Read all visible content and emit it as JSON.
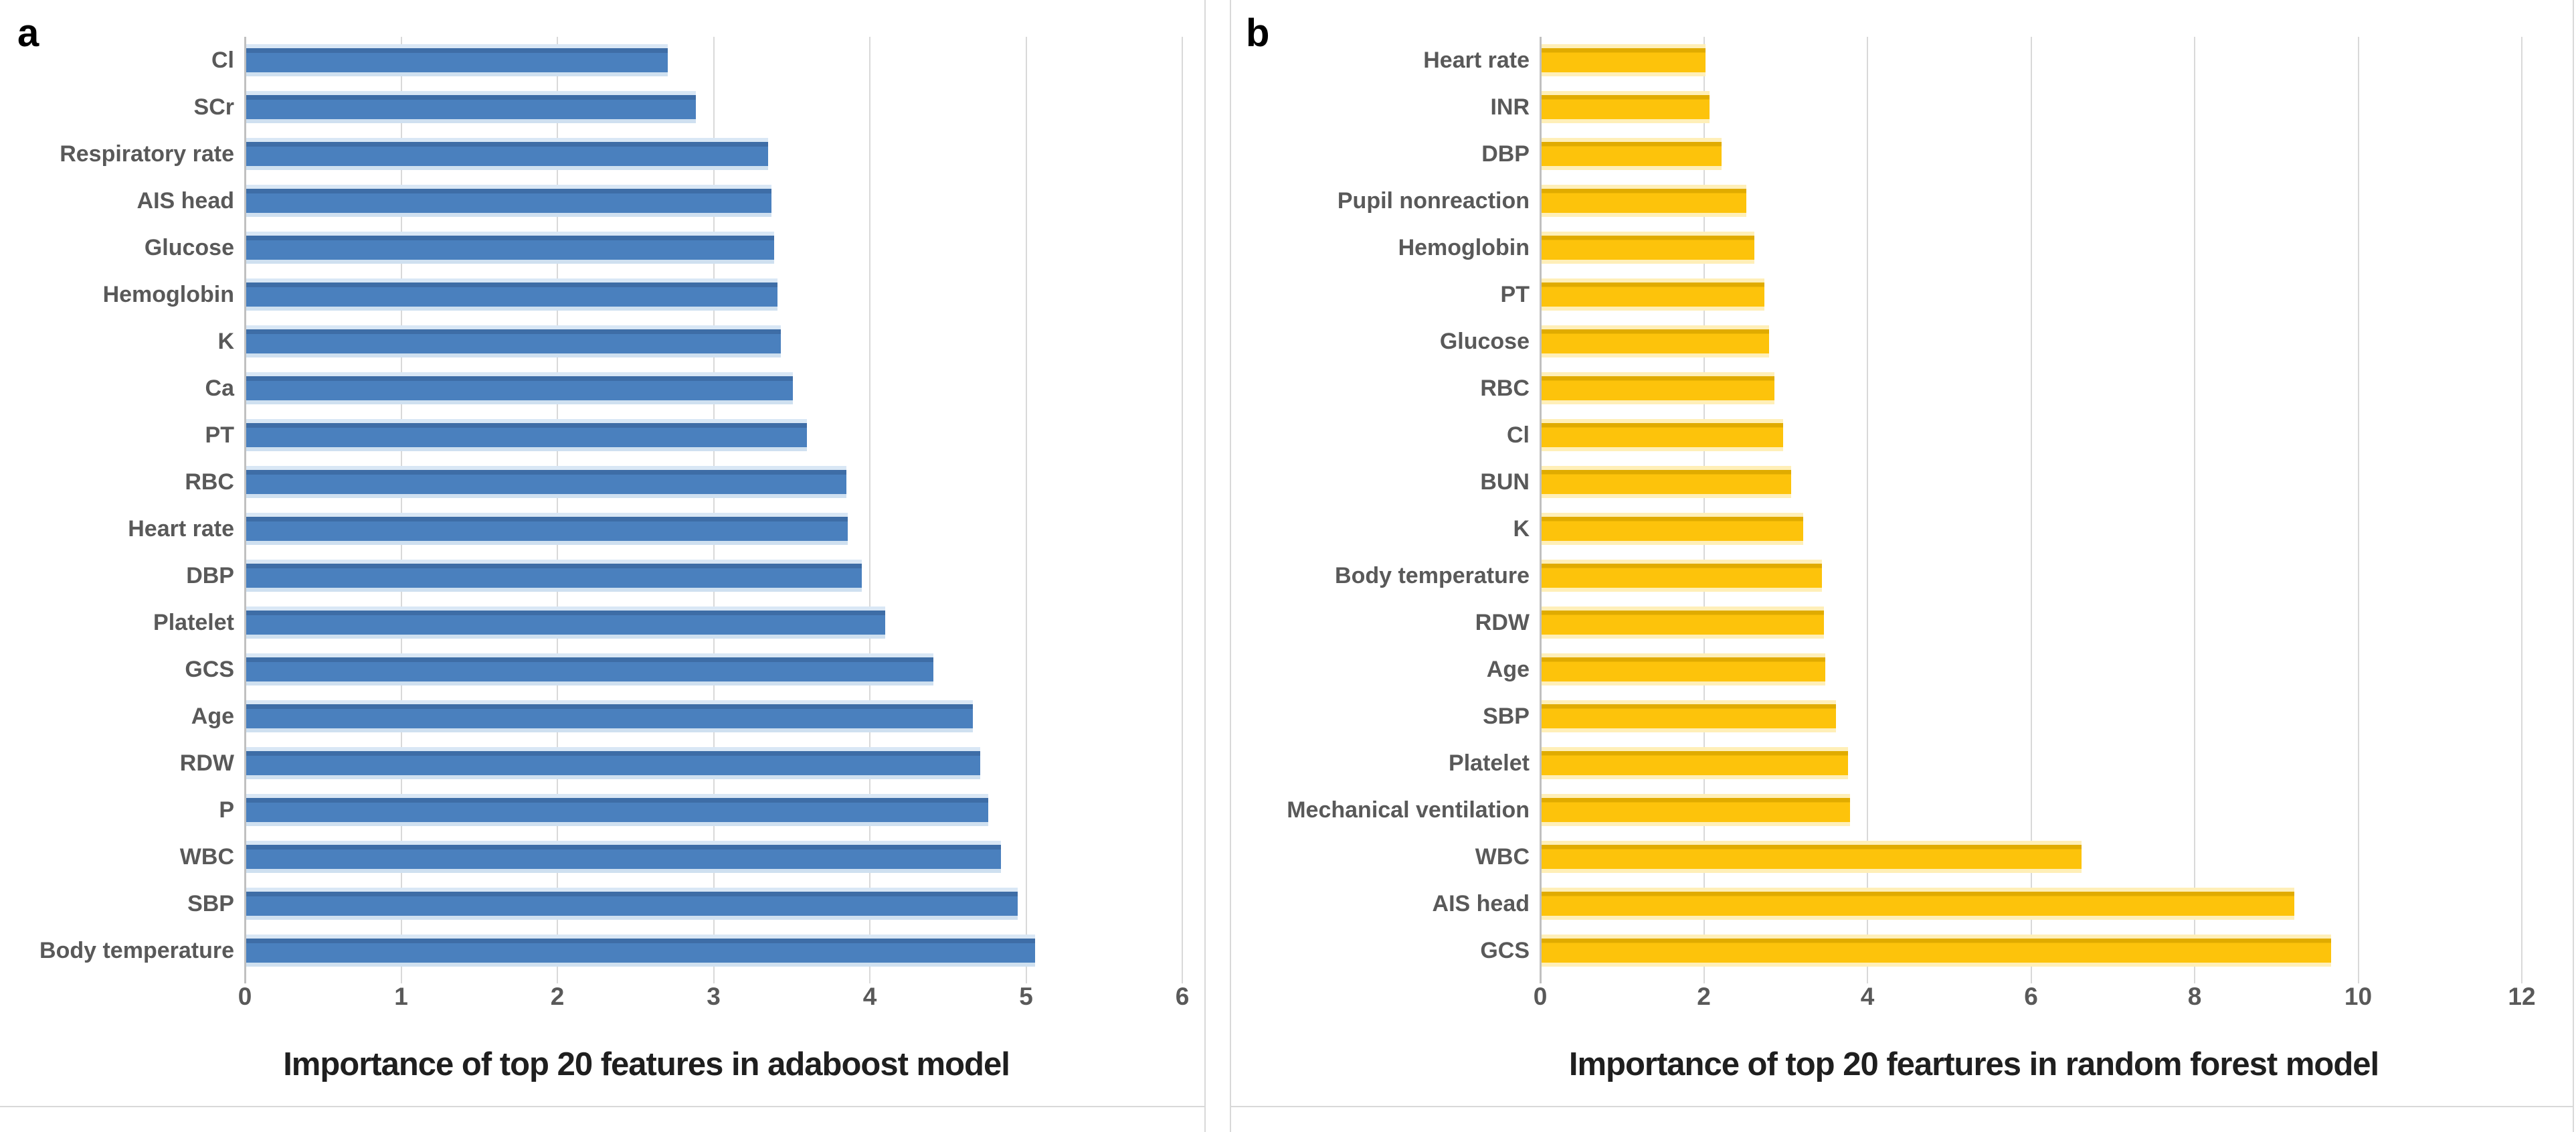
{
  "figure": {
    "background": "#ffffff",
    "border_color": "#d9d9d9",
    "gridline_color": "#d9d9d9",
    "axis_line_color": "#c0c0c0",
    "label_color": "#595959",
    "title_color": "#1f1f1f"
  },
  "chart_data": [
    {
      "type": "bar",
      "orientation": "horizontal",
      "panel_label": "a",
      "title": "Importance of top 20 features in adaboost model",
      "bar_color": "#4A80BE",
      "xlim": [
        0,
        6
      ],
      "ticks": [
        0,
        1,
        2,
        3,
        4,
        5,
        6
      ],
      "grid": true,
      "categories": [
        "Cl",
        "SCr",
        "Respiratory rate",
        "AIS head",
        "Glucose",
        "Hemoglobin",
        "K",
        "Ca",
        "PT",
        "RBC",
        "Heart rate",
        "DBP",
        "Platelet",
        "GCS",
        "Age",
        "RDW",
        "P",
        "WBC",
        "SBP",
        "Body temperature"
      ],
      "values": [
        2.7,
        2.88,
        3.34,
        3.36,
        3.38,
        3.4,
        3.42,
        3.5,
        3.59,
        3.84,
        3.85,
        3.94,
        4.09,
        4.4,
        4.65,
        4.7,
        4.75,
        4.83,
        4.94,
        5.05
      ]
    },
    {
      "type": "bar",
      "orientation": "horizontal",
      "panel_label": "b",
      "title": "Importance of top 20 feartures in random forest model",
      "bar_color": "#FDC30B",
      "xlim": [
        0,
        12
      ],
      "ticks": [
        0,
        2,
        4,
        6,
        8,
        10,
        12
      ],
      "grid": true,
      "categories": [
        "Heart rate",
        "INR",
        "DBP",
        "Pupil nonreaction",
        "Hemoglobin",
        "PT",
        "Glucose",
        "RBC",
        "Cl",
        "BUN",
        "K",
        "Body temperature",
        "RDW",
        "Age",
        "SBP",
        "Platelet",
        "Mechanical ventilation",
        "WBC",
        "AIS head",
        "GCS"
      ],
      "values": [
        2.0,
        2.05,
        2.2,
        2.5,
        2.6,
        2.72,
        2.78,
        2.85,
        2.95,
        3.05,
        3.2,
        3.43,
        3.45,
        3.47,
        3.6,
        3.75,
        3.77,
        6.6,
        9.2,
        9.65
      ]
    }
  ]
}
